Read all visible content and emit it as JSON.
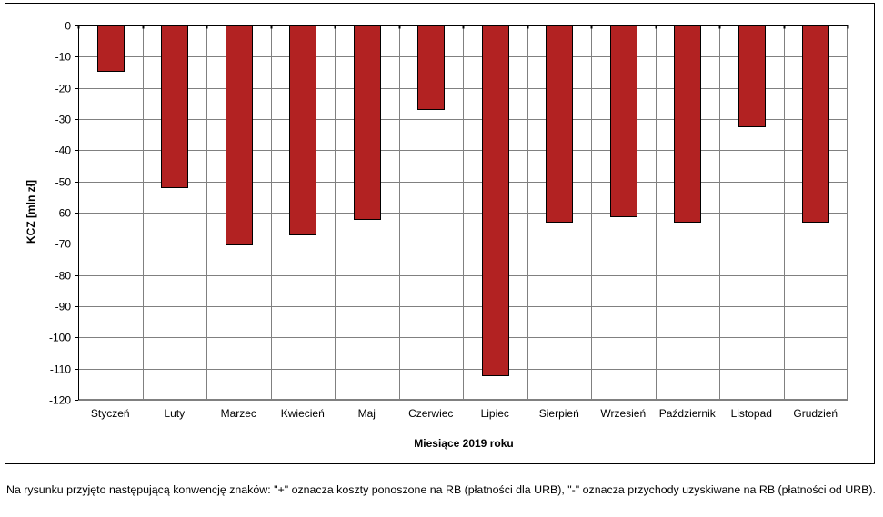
{
  "chart_data": {
    "type": "bar",
    "categories": [
      "Styczeń",
      "Luty",
      "Marzec",
      "Kwiecień",
      "Maj",
      "Czerwiec",
      "Lipiec",
      "Sierpień",
      "Wrzesień",
      "Październik",
      "Listopad",
      "Grudzień"
    ],
    "values": [
      -14.5,
      -51.8,
      -70.2,
      -67.0,
      -62.0,
      -26.7,
      -112.0,
      -63.0,
      -61.3,
      -62.8,
      -32.3,
      -63.0
    ],
    "xlabel": "Miesiące 2019  roku",
    "ylabel": "KCZ [mln zł]",
    "ylim": [
      -120,
      0
    ],
    "yticks": [
      0,
      -10,
      -20,
      -30,
      -40,
      -50,
      -60,
      -70,
      -80,
      -90,
      -100,
      -110,
      -120
    ],
    "grid": true,
    "bar_color": "#b22222",
    "plot_background": "#ffffff",
    "grid_color": "#808080"
  },
  "footnote": "Na rysunku przyjęto następującą konwencję znaków: \"+\" oznacza koszty ponoszone na RB (płatności dla URB), \"-\" oznacza przychody uzyskiwane na RB (płatności od URB)."
}
